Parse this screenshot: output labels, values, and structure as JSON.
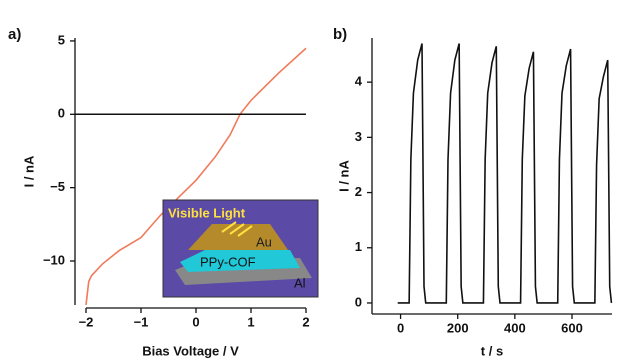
{
  "chart_data": [
    {
      "type": "line",
      "panel_label": "a)",
      "x_label": "Bias Voltage / V",
      "y_label": "I / nA",
      "x": [
        -2,
        -1.95,
        -1.9,
        -1.7,
        -1.4,
        -1,
        -0.65,
        -0.3,
        0,
        0.35,
        0.62,
        0.8,
        1,
        1.5,
        2
      ],
      "values": [
        -13,
        -11.4,
        -11,
        -10.2,
        -9.3,
        -8.4,
        -6.9,
        -5.6,
        -4.5,
        -2.9,
        -1.4,
        0,
        0.95,
        2.8,
        4.5
      ],
      "color": "#f07a5a",
      "hline": 0,
      "xlim": [
        -2.2,
        2
      ],
      "ylim": [
        -13,
        5.2
      ],
      "xticks": [
        {
          "value": -2,
          "label": "−2"
        },
        {
          "value": -1,
          "label": "−1"
        },
        0,
        1,
        2
      ],
      "yticks": [
        5,
        0,
        {
          "value": -5,
          "label": "−5"
        },
        {
          "value": -10,
          "label": "−10"
        }
      ],
      "inset_labels": [
        "Visible Light",
        "Au",
        "PPy-COF",
        "Al"
      ]
    },
    {
      "type": "line",
      "panel_label": "b)",
      "x_label": "t / s",
      "y_label": "I / nA",
      "x": [
        -10,
        30,
        36,
        45,
        60,
        75,
        82,
        88,
        160,
        166,
        175,
        190,
        205,
        212,
        218,
        290,
        296,
        305,
        320,
        335,
        342,
        348,
        420,
        426,
        435,
        450,
        465,
        472,
        478,
        550,
        556,
        565,
        580,
        595,
        602,
        608,
        680,
        686,
        695,
        710,
        725,
        732,
        738
      ],
      "values": [
        0,
        0,
        2.6,
        3.8,
        4.4,
        4.7,
        0.3,
        0,
        0,
        2.6,
        3.8,
        4.4,
        4.7,
        0.3,
        0,
        0,
        2.6,
        3.8,
        4.35,
        4.65,
        0.3,
        0,
        0,
        2.6,
        3.75,
        4.25,
        4.55,
        0.3,
        0,
        0,
        2.6,
        3.8,
        4.3,
        4.6,
        0.3,
        0,
        0,
        2.5,
        3.7,
        4.1,
        4.4,
        0.3,
        0
      ],
      "color": "#111111",
      "xlim": [
        -100,
        740
      ],
      "ylim": [
        -0.2,
        4.8
      ],
      "xticks": [
        0,
        200,
        400,
        600
      ],
      "yticks": [
        0,
        1,
        2,
        3,
        4
      ]
    }
  ]
}
